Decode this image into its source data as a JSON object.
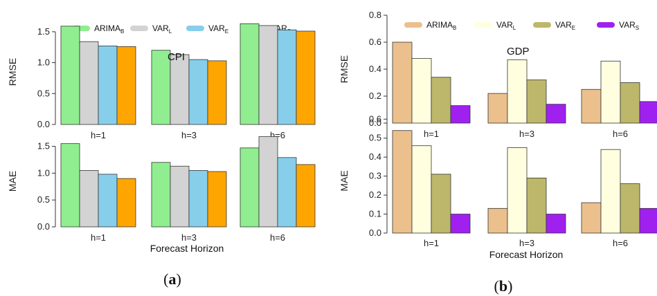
{
  "captions": {
    "a": "a",
    "b": "b"
  },
  "chart_data": [
    {
      "type": "bar",
      "id": "a",
      "title": "CPI",
      "xlabel": "Forecast Horizon",
      "legend": [
        {
          "name": "ARIMA",
          "sub": "B",
          "color": "#90EE90"
        },
        {
          "name": "VAR",
          "sub": "L",
          "color": "#D3D3D3"
        },
        {
          "name": "VAR",
          "sub": "E",
          "color": "#87CEEB"
        },
        {
          "name": "VAR",
          "sub": "S",
          "color": "#FFA500"
        }
      ],
      "categories": [
        "h=1",
        "h=3",
        "h=6"
      ],
      "panels": [
        {
          "ylabel": "RMSE",
          "ylim": [
            0,
            1.7
          ],
          "yticks": [
            "0.0",
            "0.5",
            "1.0",
            "1.5"
          ],
          "series": [
            [
              1.59,
              1.34,
              1.27,
              1.26
            ],
            [
              1.2,
              1.13,
              1.05,
              1.03
            ],
            [
              1.63,
              1.6,
              1.53,
              1.51
            ]
          ]
        },
        {
          "ylabel": "MAE",
          "ylim": [
            0,
            1.7
          ],
          "yticks": [
            "0.0",
            "0.5",
            "1.0",
            "1.5"
          ],
          "series": [
            [
              1.55,
              1.05,
              0.98,
              0.9
            ],
            [
              1.2,
              1.13,
              1.05,
              1.03
            ],
            [
              1.47,
              1.68,
              1.29,
              1.16
            ]
          ]
        }
      ]
    },
    {
      "type": "bar",
      "id": "b",
      "title": "GDP",
      "xlabel": "Forecast Horizon",
      "legend": [
        {
          "name": "ARIMA",
          "sub": "B",
          "color": "#EBC08D"
        },
        {
          "name": "VAR",
          "sub": "L",
          "color": "#FFFFE0"
        },
        {
          "name": "VAR",
          "sub": "E",
          "color": "#BDB76B"
        },
        {
          "name": "VAR",
          "sub": "S",
          "color": "#A020F0"
        }
      ],
      "categories": [
        "h=1",
        "h=3",
        "h=6"
      ],
      "panels": [
        {
          "ylabel": "RMSE",
          "ylim": [
            0,
            0.8
          ],
          "yticks": [
            "0.0",
            "0.2",
            "0.4",
            "0.6",
            "0.8"
          ],
          "series": [
            [
              0.6,
              0.48,
              0.34,
              0.13
            ],
            [
              0.22,
              0.47,
              0.32,
              0.14
            ],
            [
              0.25,
              0.46,
              0.3,
              0.16
            ]
          ]
        },
        {
          "ylabel": "MAE",
          "ylim": [
            0,
            0.55
          ],
          "yticks": [
            "0.0",
            "0.1",
            "0.2",
            "0.3",
            "0.4",
            "0.5",
            "0.6"
          ],
          "series": [
            [
              0.54,
              0.46,
              0.31,
              0.1
            ],
            [
              0.13,
              0.45,
              0.29,
              0.1
            ],
            [
              0.16,
              0.44,
              0.26,
              0.13
            ]
          ]
        }
      ]
    }
  ]
}
